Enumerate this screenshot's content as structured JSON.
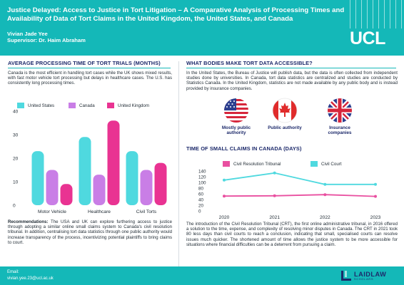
{
  "header": {
    "title": "Justice Delayed: Access to Justice in Tort Litigation – A Comparative Analysis of Processing Times and Availability of Data of Tort Claims in the United Kingdom, the United States, and Canada",
    "author": "Vivian Jade Yee",
    "supervisor": "Supervisor: Dr. Haim Abraham",
    "logo_text": "UCL"
  },
  "left": {
    "heading": "AVERAGE PROCESSING TIME OF TORT  TRIALS (MONTHS)",
    "intro": "Canada is the most efficient in handling tort cases while the UK shows mixed results, with fast motor vehicle tort processing but delays in healthcare cases. The U.S. has consistently long processing times.",
    "recommendations_label": "Recommendations:",
    "recommendations": " The USA and UK can explore furthering access to justice through adopting a similar online small claims system to Canada's civil resolution tribunal. In addition, centralising tort data statistics through one public authority would increase transparency of the process, incentivizing potential plaintiffs to bring claims to court."
  },
  "right": {
    "heading": "WHAT BODIES MAKE  TORT DATA ACCESSIBLE?",
    "intro": "In the United States, the Bureau of Justice will publish data, but the data is often collected from independent studies done by universities. In Canada, tort data statistics are centralized and studies are conducted by Statistics Canada. In the United Kingdom, statistics are not made available by any public body and is instead provided by insurance companies.",
    "bodies": [
      {
        "icon": "us-flag-icon",
        "label": "Mostly public authority"
      },
      {
        "icon": "canada-flag-icon",
        "label": "Public authority"
      },
      {
        "icon": "uk-flag-icon",
        "label": "Insurance companies"
      }
    ],
    "claims_heading": "TIME OF SMALL CLAIMS IN CANADA (DAYS)",
    "conclusion": "The introduction of the Civil Resolution Tribunal (CRT), the first online administrative tribunal, in 2016 offered a solution to the time, expense, and complexity of resolving minor disputes in Canada. The CRT in 2021 took 80 less days than civil courts to reach a conclusion, indicating that small, specialised courts can resolve issues much quicker. The shortened amount of time allows the justice system to be more accessible for situations where financial difficulties can be a deterrent from pursuing a claim."
  },
  "footer": {
    "email_label": "Email:",
    "email": "vivian.yee.23@ucl.ac.uk",
    "logo_name": "LAIDLAW",
    "logo_sub": "SCHOLARS"
  },
  "colors": {
    "accent": "#14b8b8",
    "navy": "#1d2a6b",
    "united_states": "#4fd9df",
    "canada": "#c97ee6",
    "united_kingdom": "#e93392",
    "crt": "#e94fa0",
    "civil_court": "#4fd9df"
  },
  "chart_data": [
    {
      "type": "bar",
      "categories": [
        "Motor Vehicle",
        "Healthcare",
        "Civil Torts"
      ],
      "series": [
        {
          "name": "United States",
          "values": [
            23,
            29,
            23
          ]
        },
        {
          "name": "Canada",
          "values": [
            15,
            13,
            15
          ]
        },
        {
          "name": "United Kingdom",
          "values": [
            9,
            36,
            18
          ]
        }
      ],
      "yticks": [
        0,
        10,
        20,
        30,
        40
      ],
      "ylim": [
        0,
        40
      ],
      "grid": false,
      "legend": "top"
    },
    {
      "type": "line",
      "x": [
        "2020",
        "2021",
        "2022",
        "2023"
      ],
      "series": [
        {
          "name": "Civil Resolution Tribunal",
          "values": [
            52,
            53,
            57,
            51
          ]
        },
        {
          "name": "Civil Court",
          "values": [
            108,
            133,
            93,
            93
          ]
        }
      ],
      "yticks": [
        0,
        20,
        40,
        60,
        80,
        100,
        120,
        140
      ],
      "ylim": [
        0,
        140
      ],
      "grid": false,
      "legend": "top"
    }
  ]
}
